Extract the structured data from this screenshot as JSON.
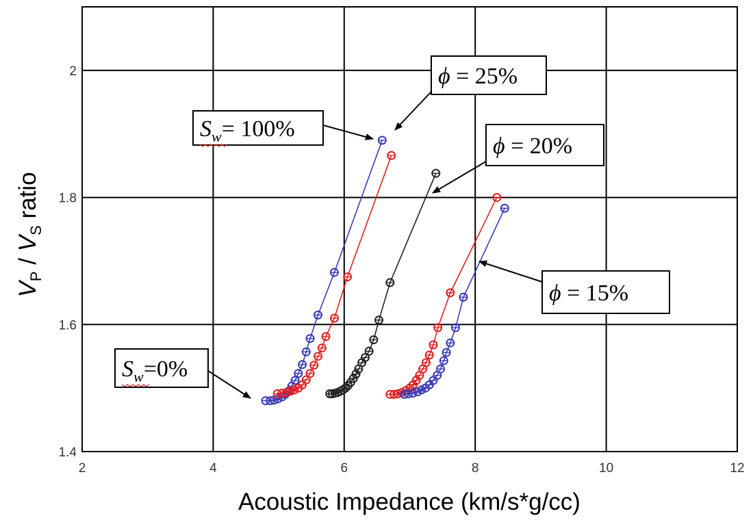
{
  "chart_data": {
    "type": "scatter",
    "title": "",
    "xlabel": "Acoustic Impedance (km/s*g/cc)",
    "ylabel": {
      "v": "V",
      "p": "P",
      "slash": " / ",
      "s": "S",
      "rest": " ratio"
    },
    "xlim": [
      2,
      12
    ],
    "ylim": [
      1.4,
      2.1
    ],
    "x_ticks": [
      "2",
      "4",
      "6",
      "8",
      "10",
      "12"
    ],
    "y_ticks": [
      "1.4",
      "1.6",
      "1.8",
      "2"
    ],
    "grid": true,
    "legend": "none",
    "series": [
      {
        "color": "#3a3ab8",
        "points": [
          [
            4.8,
            1.48
          ],
          [
            4.87,
            1.48
          ],
          [
            4.93,
            1.481
          ],
          [
            4.99,
            1.483
          ],
          [
            5.05,
            1.486
          ],
          [
            5.1,
            1.49
          ],
          [
            5.15,
            1.495
          ],
          [
            5.2,
            1.503
          ],
          [
            5.25,
            1.512
          ],
          [
            5.3,
            1.523
          ],
          [
            5.36,
            1.537
          ],
          [
            5.42,
            1.557
          ],
          [
            5.48,
            1.578
          ],
          [
            5.6,
            1.615
          ],
          [
            5.85,
            1.682
          ],
          [
            6.58,
            1.89
          ]
        ]
      },
      {
        "color": "#e02020",
        "points": [
          [
            4.98,
            1.491
          ],
          [
            5.05,
            1.492
          ],
          [
            5.12,
            1.493
          ],
          [
            5.18,
            1.495
          ],
          [
            5.24,
            1.497
          ],
          [
            5.3,
            1.5
          ],
          [
            5.36,
            1.505
          ],
          [
            5.42,
            1.513
          ],
          [
            5.48,
            1.523
          ],
          [
            5.54,
            1.536
          ],
          [
            5.6,
            1.55
          ],
          [
            5.66,
            1.563
          ],
          [
            5.72,
            1.581
          ],
          [
            5.85,
            1.61
          ],
          [
            6.05,
            1.675
          ],
          [
            6.72,
            1.866
          ]
        ]
      },
      {
        "color": "#222222",
        "points": [
          [
            5.78,
            1.491
          ],
          [
            5.82,
            1.491
          ],
          [
            5.86,
            1.492
          ],
          [
            5.9,
            1.493
          ],
          [
            5.94,
            1.495
          ],
          [
            5.98,
            1.497
          ],
          [
            6.02,
            1.5
          ],
          [
            6.06,
            1.504
          ],
          [
            6.1,
            1.509
          ],
          [
            6.14,
            1.515
          ],
          [
            6.18,
            1.522
          ],
          [
            6.22,
            1.53
          ],
          [
            6.27,
            1.54
          ],
          [
            6.32,
            1.548
          ],
          [
            6.38,
            1.558
          ],
          [
            6.45,
            1.576
          ],
          [
            6.53,
            1.607
          ],
          [
            6.7,
            1.666
          ],
          [
            7.4,
            1.838
          ]
        ]
      },
      {
        "color": "#e02020",
        "points": [
          [
            6.7,
            1.49
          ],
          [
            6.76,
            1.49
          ],
          [
            6.82,
            1.491
          ],
          [
            6.88,
            1.493
          ],
          [
            6.94,
            1.496
          ],
          [
            7.0,
            1.5
          ],
          [
            7.05,
            1.505
          ],
          [
            7.1,
            1.512
          ],
          [
            7.15,
            1.52
          ],
          [
            7.2,
            1.53
          ],
          [
            7.25,
            1.54
          ],
          [
            7.3,
            1.552
          ],
          [
            7.36,
            1.568
          ],
          [
            7.43,
            1.595
          ],
          [
            7.62,
            1.65
          ],
          [
            8.33,
            1.8
          ]
        ]
      },
      {
        "color": "#3a3ab8",
        "points": [
          [
            6.92,
            1.49
          ],
          [
            6.98,
            1.491
          ],
          [
            7.05,
            1.492
          ],
          [
            7.12,
            1.494
          ],
          [
            7.18,
            1.497
          ],
          [
            7.24,
            1.5
          ],
          [
            7.3,
            1.505
          ],
          [
            7.36,
            1.512
          ],
          [
            7.42,
            1.52
          ],
          [
            7.47,
            1.53
          ],
          [
            7.52,
            1.543
          ],
          [
            7.56,
            1.556
          ],
          [
            7.62,
            1.571
          ],
          [
            7.7,
            1.595
          ],
          [
            7.82,
            1.643
          ],
          [
            8.45,
            1.783
          ]
        ]
      }
    ],
    "annotations": [
      {
        "prefix": "",
        "var": "S",
        "sub": "w",
        "text": "= 100%",
        "kind": "sw"
      },
      {
        "prefix": "",
        "var": "S",
        "sub": "w",
        "text": "=0%",
        "kind": "sw"
      },
      {
        "prefix": "",
        "var": "ϕ",
        "sub": "",
        "text": " = 25%",
        "kind": "phi"
      },
      {
        "prefix": "",
        "var": "ϕ",
        "sub": "",
        "text": " = 20%",
        "kind": "phi"
      },
      {
        "prefix": "",
        "var": "ϕ",
        "sub": "",
        "text": " = 15%",
        "kind": "phi"
      }
    ]
  }
}
